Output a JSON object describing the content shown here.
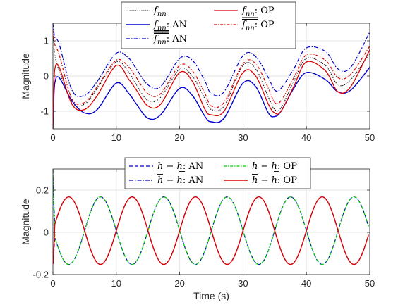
{
  "chart_data": [
    {
      "type": "line",
      "xlabel": "",
      "ylabel": "Magnitude",
      "xlim": [
        0,
        50
      ],
      "ylim": [
        -1.5,
        1.5
      ],
      "xticks": [
        0,
        10,
        20,
        30,
        40,
        50
      ],
      "yticks": [
        -1,
        0,
        1
      ],
      "grid": true,
      "legend_placement": "top-center",
      "legend_columns": 2,
      "series": [
        {
          "name": "f_nn",
          "label": {
            "sym": "f",
            "sub": "nn",
            "bar": "",
            "suffix": ""
          },
          "color": "#000000",
          "dash": "1.2,1.6",
          "width": 1.1,
          "x": [
            0,
            0.3,
            1,
            3,
            5,
            7,
            10,
            12,
            13,
            15,
            17,
            20,
            22,
            24,
            25,
            27,
            30,
            32,
            34,
            35,
            36,
            38,
            40,
            43,
            45,
            47,
            50
          ],
          "y": [
            1.2,
            0.6,
            0.15,
            -0.75,
            -0.8,
            -0.35,
            0.4,
            0.1,
            -0.2,
            -0.7,
            -0.6,
            0.2,
            0,
            -0.65,
            -0.95,
            -0.85,
            0.3,
            0.2,
            -0.6,
            -0.95,
            -0.9,
            -0.15,
            0.5,
            0.3,
            -0.25,
            -0.1,
            0.65
          ]
        },
        {
          "name": "f_nn lower: AN",
          "label": {
            "sym": "f",
            "sub": "nn",
            "bar": "under2",
            "suffix": ": AN"
          },
          "color": "#0000cc",
          "dash": "",
          "width": 1.4,
          "x": [
            0,
            0.1,
            0.3,
            1,
            3,
            5,
            7,
            10,
            12,
            13,
            15,
            17,
            20,
            22,
            24,
            25,
            27,
            30,
            32,
            34,
            35,
            36,
            38,
            40,
            43,
            45,
            47,
            50
          ],
          "y": [
            -1.5,
            -0.9,
            -0.2,
            -0.05,
            -0.7,
            -1.05,
            -0.95,
            -0.2,
            -0.5,
            -0.75,
            -1.2,
            -1.1,
            -0.35,
            -0.55,
            -1.15,
            -1.3,
            -1.2,
            -0.2,
            -0.3,
            -1.05,
            -1.15,
            -1.0,
            -0.35,
            0.1,
            -0.1,
            -0.45,
            -0.4,
            0.25
          ]
        },
        {
          "name": "f_nn upper: AN",
          "label": {
            "sym": "f",
            "sub": "nn",
            "bar": "over2",
            "suffix": ": AN"
          },
          "color": "#0000cc",
          "dash": "6,2,1.5,2",
          "width": 1.2,
          "x": [
            0,
            0.3,
            1,
            3,
            5,
            7,
            10,
            12,
            13,
            15,
            17,
            20,
            22,
            24,
            25,
            27,
            30,
            32,
            34,
            35,
            36,
            38,
            40,
            43,
            45,
            47,
            50
          ],
          "y": [
            1.5,
            1.1,
            0.9,
            -0.4,
            -0.55,
            -0.15,
            0.65,
            0.5,
            0.25,
            -0.25,
            -0.3,
            0.5,
            0.45,
            -0.15,
            -0.5,
            -0.45,
            0.58,
            0.55,
            -0.05,
            -0.4,
            -0.35,
            0.2,
            0.8,
            0.7,
            0.2,
            0.25,
            1.25
          ]
        },
        {
          "name": "f_nn lower: OP",
          "label": {
            "sym": "f",
            "sub": "nn",
            "bar": "under2",
            "suffix": ": OP"
          },
          "color": "#dd0000",
          "dash": "",
          "width": 1.3,
          "x": [
            0,
            0.1,
            0.3,
            1,
            3,
            5,
            7,
            10,
            12,
            13,
            15,
            17,
            20,
            22,
            24,
            25,
            27,
            30,
            32,
            34,
            35,
            36,
            38,
            40,
            43,
            45,
            47,
            50
          ],
          "y": [
            -1.5,
            -0.6,
            0.2,
            0.25,
            -0.8,
            -0.95,
            -0.55,
            0.3,
            -0.1,
            -0.35,
            -0.85,
            -0.8,
            0.1,
            -0.15,
            -0.95,
            -1.1,
            -1.0,
            0.1,
            0,
            -0.8,
            -1.05,
            -1.0,
            -0.3,
            0.4,
            0.15,
            -0.45,
            -0.3,
            0.75
          ]
        },
        {
          "name": "f_nn upper: OP",
          "label": {
            "sym": "f",
            "sub": "nn",
            "bar": "over",
            "suffix": ": OP"
          },
          "color": "#dd0000",
          "dash": "4,2,1.2,2",
          "width": 1.2,
          "x": [
            0,
            0.3,
            1,
            3,
            5,
            7,
            10,
            12,
            13,
            15,
            17,
            20,
            22,
            24,
            25,
            27,
            30,
            32,
            34,
            35,
            36,
            38,
            40,
            43,
            45,
            47,
            50
          ],
          "y": [
            1.3,
            0.9,
            0.6,
            -0.65,
            -0.75,
            -0.3,
            0.45,
            0.25,
            0,
            -0.5,
            -0.5,
            0.3,
            0.15,
            -0.5,
            -0.85,
            -0.75,
            0.35,
            0.35,
            -0.35,
            -0.75,
            -0.7,
            -0.05,
            0.6,
            0.45,
            -0.05,
            0.05,
            0.85
          ]
        }
      ]
    },
    {
      "type": "line",
      "xlabel": "Time (s)",
      "ylabel": "Magnitude",
      "xlim": [
        0,
        50
      ],
      "ylim": [
        -0.2,
        0.3
      ],
      "xticks": [
        0,
        10,
        20,
        30,
        40,
        50
      ],
      "yticks": [
        -0.2,
        0,
        0.2
      ],
      "grid": true,
      "legend_placement": "top-center",
      "legend_columns": 2,
      "oscillation": {
        "amplitude": 0.16,
        "offset": 0.008,
        "period_s": 10
      },
      "series": [
        {
          "name": "h - h lower: AN",
          "label": {
            "lhs": "h",
            "lhsbar": "",
            "rhs": "h",
            "rhsbar": "under",
            "suffix": ": AN"
          },
          "color": "#0000cc",
          "dash": "5,3",
          "width": 1.2,
          "phase": "minus",
          "spike": -0.15
        },
        {
          "name": "h upper - h: AN",
          "label": {
            "lhs": "h",
            "lhsbar": "over",
            "rhs": "h",
            "rhsbar": "",
            "suffix": ": AN"
          },
          "color": "#0000cc",
          "dash": "6,2,1.5,2",
          "width": 1.2,
          "phase": "plus",
          "spike": 0.3
        },
        {
          "name": "h - h lower: OP",
          "label": {
            "lhs": "h",
            "lhsbar": "",
            "rhs": "h",
            "rhsbar": "under",
            "suffix": ": OP"
          },
          "color": "#00cc00",
          "dash": "4,2,1.2,2",
          "width": 1.3,
          "phase": "minus",
          "spike": 0.3
        },
        {
          "name": "h upper - h: OP",
          "label": {
            "lhs": "h",
            "lhsbar": "over",
            "rhs": "h",
            "rhsbar": "",
            "suffix": ": OP"
          },
          "color": "#dd0000",
          "dash": "",
          "width": 1.4,
          "phase": "plus",
          "spike": -0.15
        }
      ]
    }
  ]
}
